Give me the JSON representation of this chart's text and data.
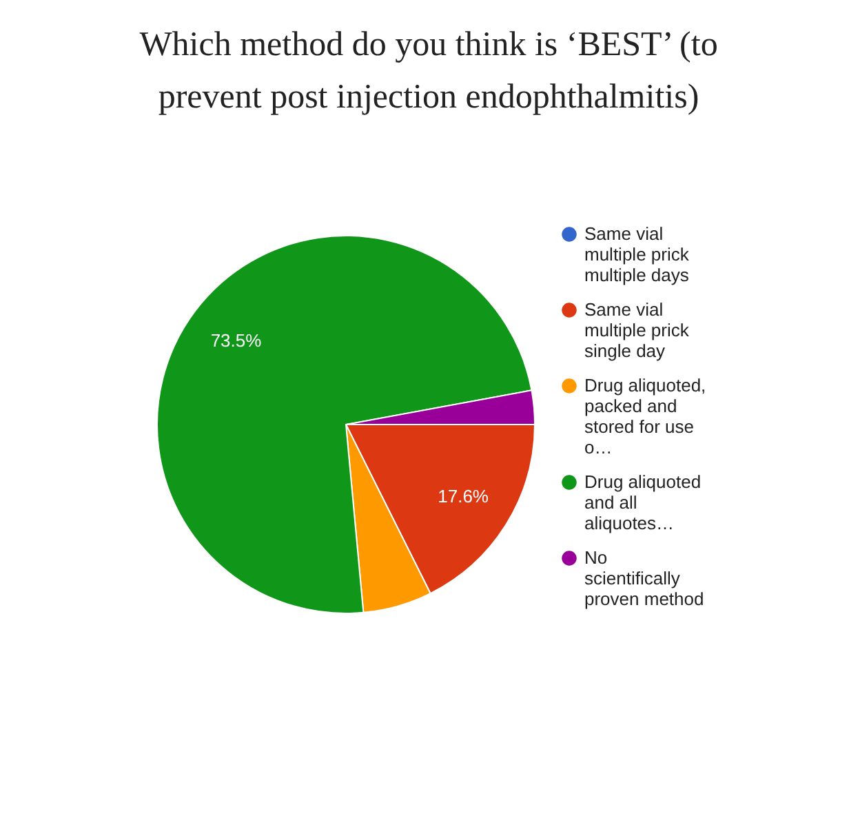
{
  "chart_data": {
    "type": "pie",
    "title": "Which method do you think is ‘BEST’ (to prevent post injection endophthalmitis)",
    "categories": [
      "Same vial multiple prick multiple days",
      "Same vial multiple prick single day",
      "Drug aliquoted, packed and stored for use o…",
      "Drug aliquoted and all aliquotes…",
      "No scientifically proven method"
    ],
    "values": [
      0,
      17.6,
      5.9,
      73.5,
      2.9
    ],
    "colors": [
      "#3366cc",
      "#dc3912",
      "#ff9900",
      "#109618",
      "#990099"
    ],
    "value_labels": [
      null,
      "17.6%",
      null,
      "73.5%",
      null
    ],
    "legend": "right"
  }
}
